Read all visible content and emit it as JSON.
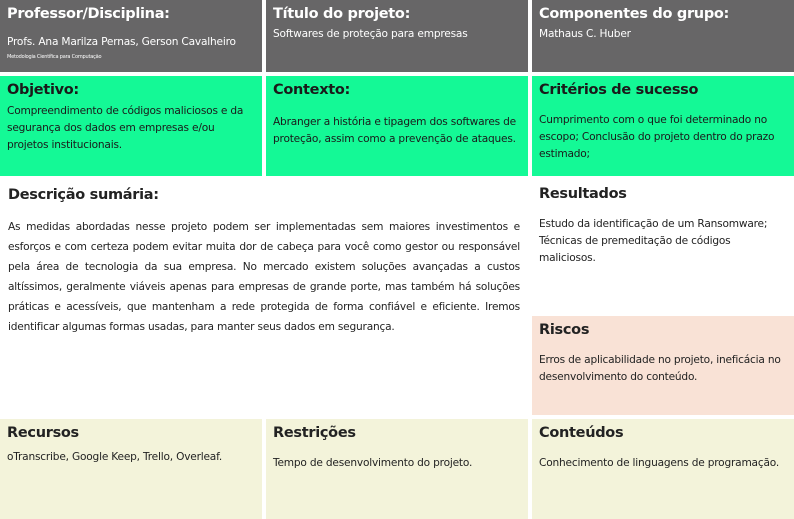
{
  "professor": {
    "title": "Professor/Disciplina:",
    "names": "Profs. Ana Marilza Pernas, Gerson Cavalheiro",
    "course": "Metodologia Científica para Computação"
  },
  "titulo": {
    "title": "Título do projeto:",
    "text": "Softwares de proteção para empresas"
  },
  "componentes": {
    "title": "Componentes do grupo:",
    "text": "Mathaus C. Huber"
  },
  "objetivo": {
    "title": "Objetivo:",
    "text": "Compreendimento de códigos maliciosos e da segurança dos dados em empresas e/ou projetos institucionais."
  },
  "contexto": {
    "title": "Contexto:",
    "text": "Abranger a história e tipagem dos softwares de proteção, assim como a prevenção de ataques."
  },
  "criterios": {
    "title": "Critérios de sucesso",
    "text": "Cumprimento com o que foi determinado no escopo; Conclusão do projeto dentro do prazo estimado;"
  },
  "descricao": {
    "title": "Descrição sumária:",
    "text": "As medidas abordadas nesse projeto podem ser implementadas sem maiores investimentos e esforços e com certeza podem evitar muita dor de cabeça para você como gestor ou responsável pela área de tecnologia da sua empresa. No mercado existem soluções avançadas a custos altíssimos, geralmente viáveis apenas para empresas de grande porte, mas também há soluções práticas e acessíveis, que mantenham a rede protegida de forma confiável e eficiente. Iremos identificar algumas formas usadas, para manter seus dados em segurança."
  },
  "resultados": {
    "title": "Resultados",
    "text": "Estudo da identificação de um Ransomware; Técnicas de premeditação de códigos maliciosos."
  },
  "riscos": {
    "title": "Riscos",
    "text": "Erros de aplicabilidade no projeto, ineficácia no desenvolvimento do conteúdo."
  },
  "recursos": {
    "title": "Recursos",
    "text": "oTranscribe, Google Keep, Trello, Overleaf."
  },
  "restricoes": {
    "title": "Restrições",
    "text": "Tempo de desenvolvimento do projeto."
  },
  "conteudos": {
    "title": "Conteúdos",
    "text": "Conhecimento de linguagens de programação."
  },
  "colors": {
    "header": "#676667",
    "green": "#14f996",
    "beige": "#f3f3da",
    "pink": "#f9e2d6"
  }
}
